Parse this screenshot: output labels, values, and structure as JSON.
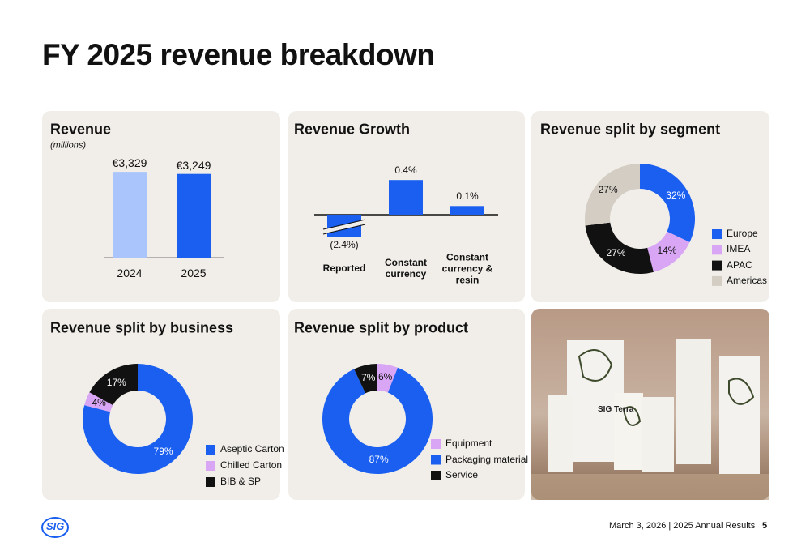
{
  "slide": {
    "title": "FY 2025 revenue breakdown",
    "logo": "SIG",
    "footer": "March 3, 2026 |  2025 Annual Results",
    "page": "5",
    "photo_label": "SIG Terra"
  },
  "chart_data": [
    {
      "type": "bar",
      "title": "Revenue",
      "subtitle": "(millions)",
      "categories": [
        "2024",
        "2025"
      ],
      "values": [
        3329,
        3249
      ],
      "value_labels": [
        "€3,329",
        "€3,249"
      ],
      "colors": [
        "#a9c5fb",
        "#1a5ff0"
      ]
    },
    {
      "type": "bar",
      "title": "Revenue Growth",
      "categories": [
        "Reported",
        "Constant currency",
        "Constant currency & resin"
      ],
      "values": [
        -2.4,
        0.4,
        0.1
      ],
      "value_labels": [
        "(2.4%)",
        "0.4%",
        "0.1%"
      ],
      "color": "#1a5ff0",
      "broken_bar": true
    },
    {
      "type": "donut",
      "title": "Revenue split by segment",
      "categories": [
        "Europe",
        "IMEA",
        "APAC",
        "Americas"
      ],
      "values": [
        32,
        14,
        27,
        27
      ],
      "value_labels": [
        "32%",
        "14%",
        "27%",
        "27%"
      ],
      "colors": [
        "#1a5ff0",
        "#d9a6f5",
        "#111111",
        "#d4cdc3"
      ]
    },
    {
      "type": "donut",
      "title": "Revenue split by business",
      "categories": [
        "Aseptic Carton",
        "Chilled Carton",
        "BIB & SP"
      ],
      "values": [
        79,
        4,
        17
      ],
      "value_labels": [
        "79%",
        "4%",
        "17%"
      ],
      "colors": [
        "#1a5ff0",
        "#d9a6f5",
        "#111111"
      ]
    },
    {
      "type": "donut",
      "title": "Revenue split by product",
      "categories": [
        "Equipment",
        "Packaging material",
        "Service"
      ],
      "values": [
        6,
        87,
        7
      ],
      "value_labels": [
        "6%",
        "87%",
        "7%"
      ],
      "colors": [
        "#d9a6f5",
        "#1a5ff0",
        "#111111"
      ]
    }
  ]
}
